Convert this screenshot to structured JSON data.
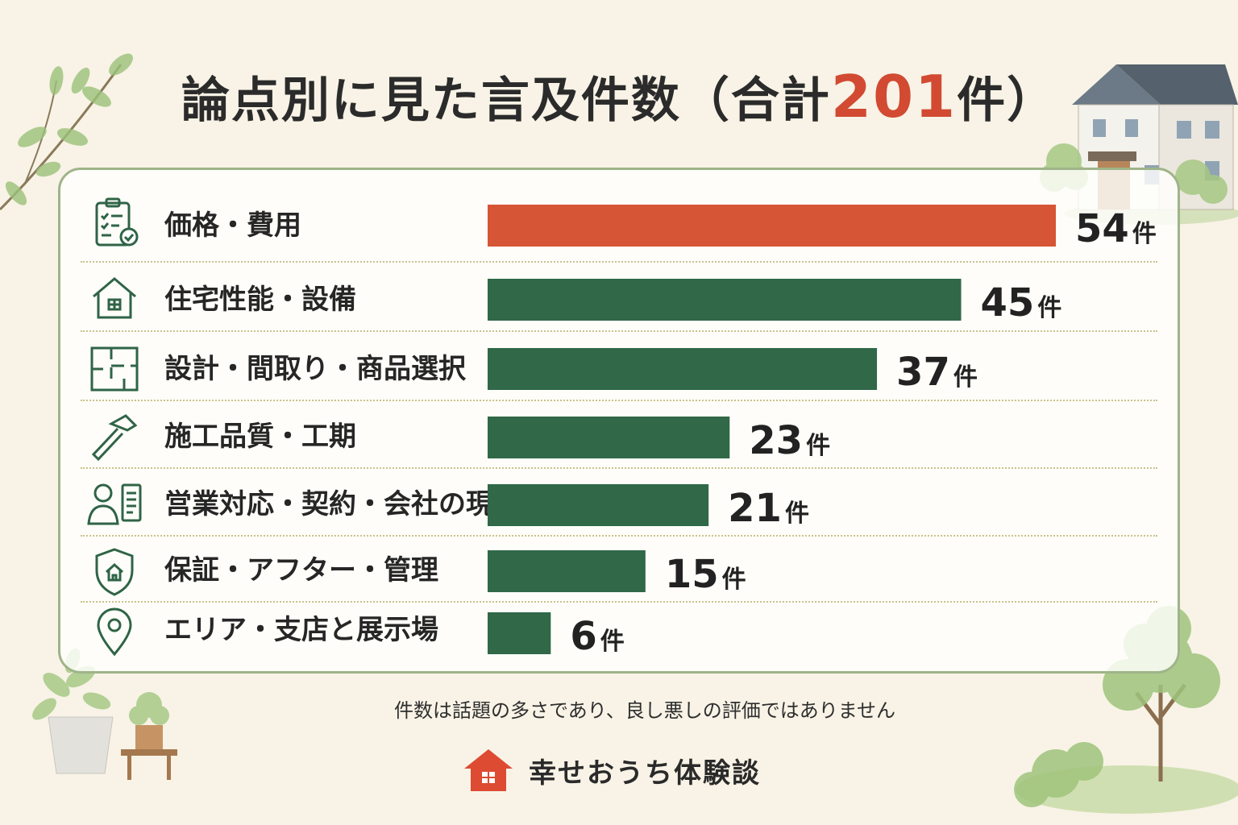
{
  "title": {
    "main": "論点別に見た言及件数",
    "open": "（合計",
    "total": "201",
    "close": "件）"
  },
  "chart_data": {
    "type": "bar",
    "orientation": "horizontal",
    "unit": "件",
    "categories": [
      "価格・費用",
      "住宅性能・設備",
      "設計・間取り・商品選択",
      "施工品質・工期",
      "営業対応・契約・会社の現況",
      "保証・アフター・管理",
      "エリア・支店と展示場"
    ],
    "values": [
      54,
      45,
      37,
      23,
      21,
      15,
      6
    ],
    "icons": [
      "checklist-icon",
      "house-icon",
      "floorplan-icon",
      "hammer-icon",
      "person-document-icon",
      "shield-house-icon",
      "map-pin-icon"
    ],
    "colors": {
      "highlight": "#d65536",
      "bar": "#306848"
    },
    "highlight_index": 0,
    "total": 201
  },
  "note": "件数は話題の多さであり、良し悪しの評価ではありません",
  "brand": {
    "name": "幸せおうち体験談",
    "icon": "house-logo-icon",
    "color": "#dd4b32"
  }
}
